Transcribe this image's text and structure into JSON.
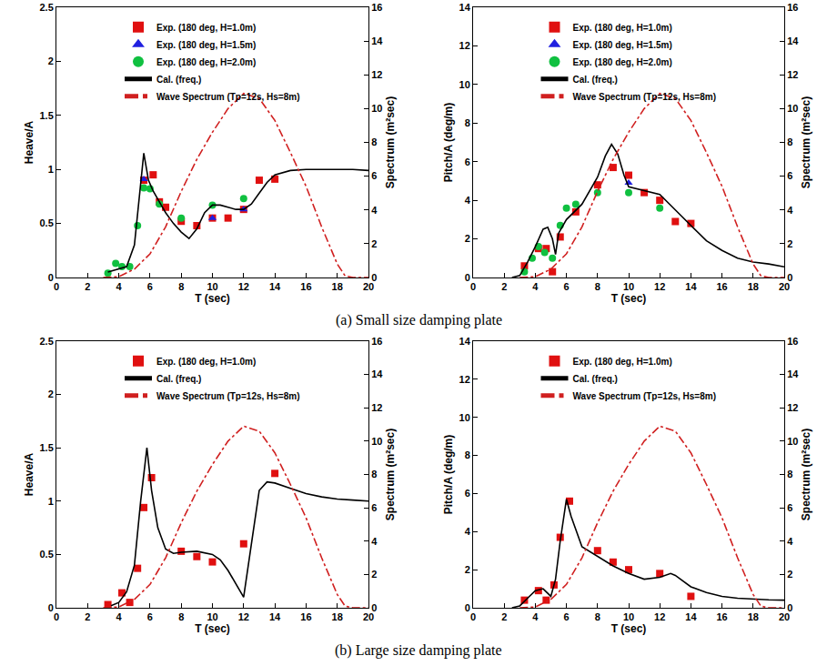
{
  "captions": [
    "(a) Small size damping plate",
    "(b) Large size damping plate"
  ],
  "chart_data": [
    {
      "type": "line",
      "x_label": "T (sec)",
      "y_label": "Heave/A",
      "y2_label": "Spectrum (m²sec)",
      "xlim": [
        0,
        20
      ],
      "xticks": [
        0,
        2,
        4,
        6,
        8,
        10,
        12,
        14,
        16,
        18,
        20
      ],
      "ylim": [
        0,
        2.5
      ],
      "yticks": [
        0,
        0.5,
        1,
        1.5,
        2,
        2.5
      ],
      "y2lim": [
        0,
        16
      ],
      "y2ticks": [
        0,
        2,
        4,
        6,
        8,
        10,
        12,
        14,
        16
      ],
      "legend": "upper center",
      "series": [
        {
          "name": "Exp. (180 deg, H=1.0m)",
          "type": "scatter",
          "marker": "square",
          "color": "#e01010",
          "x": [
            5.6,
            6.2,
            6.6,
            7,
            8,
            9,
            10,
            11,
            12,
            13,
            14
          ],
          "values": [
            0.9,
            0.95,
            0.7,
            0.65,
            0.52,
            0.48,
            0.55,
            0.55,
            0.63,
            0.9,
            0.91
          ]
        },
        {
          "name": "Exp. (180 deg, H=1.5m)",
          "type": "scatter",
          "marker": "triangle",
          "color": "#2020e0",
          "x": [
            5.6,
            10,
            12
          ],
          "values": [
            0.91,
            0.55,
            0.63
          ]
        },
        {
          "name": "Exp. (180 deg, H=2.0m)",
          "type": "scatter",
          "marker": "circle",
          "color": "#10c040",
          "x": [
            3.3,
            3.8,
            4.2,
            4.7,
            5.2,
            5.6,
            6,
            6.6,
            8,
            10,
            12
          ],
          "values": [
            0.04,
            0.13,
            0.1,
            0.1,
            0.48,
            0.83,
            0.82,
            0.68,
            0.55,
            0.67,
            0.73
          ]
        },
        {
          "name": "Cal. (freq.)",
          "type": "line",
          "line_style": "solid",
          "color": "#000000",
          "x": [
            3.3,
            4,
            4.5,
            5,
            5.3,
            5.6,
            5.9,
            6.2,
            6.6,
            7,
            7.5,
            8,
            8.5,
            9,
            9.5,
            10,
            10.5,
            11,
            11.5,
            12,
            12.5,
            13,
            13.5,
            14,
            15,
            16,
            17,
            18,
            19,
            20
          ],
          "values": [
            0.05,
            0.08,
            0.1,
            0.3,
            0.7,
            1.15,
            0.9,
            0.8,
            0.7,
            0.6,
            0.5,
            0.42,
            0.36,
            0.45,
            0.6,
            0.67,
            0.67,
            0.65,
            0.63,
            0.63,
            0.68,
            0.78,
            0.88,
            0.95,
            0.99,
            1.0,
            1.0,
            1.0,
            1.0,
            0.99
          ]
        },
        {
          "name": "Wave Spectrum (Tp=12s, Hs=8m)",
          "type": "line",
          "line_style": "dashdot",
          "color": "#d02020",
          "axis": "y2",
          "x": [
            3,
            4,
            5,
            6,
            7,
            8,
            9,
            10,
            11,
            12,
            13,
            14,
            15,
            16,
            17,
            18,
            18.5,
            19,
            20
          ],
          "values": [
            0,
            0.05,
            0.5,
            1.4,
            3.0,
            5.1,
            7.0,
            8.6,
            10.0,
            10.9,
            10.6,
            9.3,
            7.4,
            5.4,
            3.0,
            0.8,
            0.1,
            0,
            0
          ]
        }
      ]
    },
    {
      "type": "line",
      "x_label": "T (sec)",
      "y_label": "Pitch/A (deg/m)",
      "y2_label": "Spectrum (m²sec)",
      "xlim": [
        0,
        20
      ],
      "xticks": [
        0,
        2,
        4,
        6,
        8,
        10,
        12,
        14,
        16,
        18,
        20
      ],
      "ylim": [
        0,
        14
      ],
      "yticks": [
        0,
        2,
        4,
        6,
        8,
        10,
        12,
        14
      ],
      "y2lim": [
        0,
        16
      ],
      "y2ticks": [
        0,
        2,
        4,
        6,
        8,
        10,
        12,
        14,
        16
      ],
      "legend": "upper center",
      "series": [
        {
          "name": "Exp. (180 deg, H=1.0m)",
          "type": "scatter",
          "marker": "square",
          "color": "#e01010",
          "x": [
            3.3,
            4.2,
            4.7,
            5.1,
            5.6,
            6.6,
            8,
            9,
            10,
            11,
            12,
            13,
            14
          ],
          "values": [
            0.6,
            1.5,
            1.5,
            0.3,
            2.1,
            3.4,
            4.8,
            5.7,
            5.3,
            4.4,
            4.0,
            2.9,
            2.8
          ]
        },
        {
          "name": "Exp. (180 deg, H=1.5m)",
          "type": "scatter",
          "marker": "triangle",
          "color": "#2020e0",
          "x": [
            10
          ],
          "values": [
            4.9
          ]
        },
        {
          "name": "Exp. (180 deg, H=2.0m)",
          "type": "scatter",
          "marker": "circle",
          "color": "#10c040",
          "x": [
            3.3,
            3.8,
            4.2,
            4.6,
            5.1,
            5.6,
            6,
            6.6,
            8,
            10,
            12
          ],
          "values": [
            0.3,
            1.0,
            1.6,
            1.3,
            1.0,
            2.7,
            3.6,
            3.8,
            4.4,
            4.4,
            3.6
          ]
        },
        {
          "name": "Cal. (freq.)",
          "type": "line",
          "line_style": "solid",
          "color": "#000000",
          "x": [
            2.5,
            3,
            3.5,
            4,
            4.5,
            4.8,
            5.1,
            5.3,
            5.5,
            6,
            7,
            8,
            8.5,
            8.9,
            9.3,
            9.7,
            10,
            11,
            12,
            13,
            14,
            15,
            16,
            17,
            18,
            19,
            20
          ],
          "values": [
            0,
            0.1,
            0.8,
            1.6,
            2.5,
            2.6,
            2.0,
            1.2,
            2.3,
            3.0,
            3.8,
            5.2,
            6.3,
            6.9,
            6.4,
            5.3,
            4.7,
            4.5,
            4.3,
            3.5,
            2.7,
            1.9,
            1.4,
            1.0,
            0.8,
            0.7,
            0.55
          ]
        },
        {
          "name": "Wave Spectrum (Tp=12s, Hs=8m)",
          "type": "line",
          "line_style": "dashdot",
          "color": "#d02020",
          "axis": "y2",
          "x": [
            3,
            4,
            5,
            6,
            7,
            8,
            9,
            10,
            11,
            12,
            13,
            14,
            15,
            16,
            17,
            18,
            18.5,
            19,
            20
          ],
          "values": [
            0,
            0.05,
            0.5,
            1.4,
            3.0,
            5.1,
            7.0,
            8.6,
            10.0,
            10.9,
            10.6,
            9.3,
            7.4,
            5.4,
            3.0,
            0.8,
            0.1,
            0,
            0
          ]
        }
      ]
    },
    {
      "type": "line",
      "x_label": "T (sec)",
      "y_label": "Heave/A",
      "y2_label": "Spectrum (m²sec)",
      "xlim": [
        0,
        20
      ],
      "xticks": [
        0,
        2,
        4,
        6,
        8,
        10,
        12,
        14,
        16,
        18,
        20
      ],
      "ylim": [
        0,
        2.5
      ],
      "yticks": [
        0,
        0.5,
        1,
        1.5,
        2,
        2.5
      ],
      "y2lim": [
        0,
        16
      ],
      "y2ticks": [
        0,
        2,
        4,
        6,
        8,
        10,
        12,
        14,
        16
      ],
      "legend": "upper center",
      "series": [
        {
          "name": "Exp. (180 deg, H=1.0m)",
          "type": "scatter",
          "marker": "square",
          "color": "#e01010",
          "x": [
            3.3,
            4.2,
            4.7,
            5.2,
            5.6,
            6.1,
            8,
            9,
            10,
            12,
            14
          ],
          "values": [
            0.03,
            0.14,
            0.05,
            0.37,
            0.94,
            1.22,
            0.53,
            0.48,
            0.43,
            0.6,
            1.26
          ]
        },
        {
          "name": "Cal. (freq.)",
          "type": "line",
          "line_style": "solid",
          "color": "#000000",
          "x": [
            3.5,
            4,
            4.5,
            5,
            5.4,
            5.8,
            6.1,
            6.5,
            7,
            7.5,
            8,
            9,
            10,
            10.5,
            11,
            11.5,
            12,
            12.5,
            13,
            13.5,
            14,
            15,
            16,
            17,
            18,
            19,
            20
          ],
          "values": [
            0.02,
            0.05,
            0.15,
            0.4,
            1.0,
            1.5,
            1.1,
            0.75,
            0.55,
            0.51,
            0.52,
            0.53,
            0.5,
            0.45,
            0.35,
            0.22,
            0.1,
            0.6,
            1.1,
            1.18,
            1.17,
            1.12,
            1.07,
            1.04,
            1.02,
            1.01,
            1.0
          ]
        },
        {
          "name": "Wave Spectrum (Tp=12s, Hs=8m)",
          "type": "line",
          "line_style": "dashdot",
          "color": "#d02020",
          "axis": "y2",
          "x": [
            3,
            4,
            5,
            6,
            7,
            8,
            9,
            10,
            11,
            12,
            13,
            14,
            15,
            16,
            17,
            18,
            18.5,
            19,
            20
          ],
          "values": [
            0,
            0.05,
            0.5,
            1.4,
            3.0,
            5.1,
            7.0,
            8.6,
            10.0,
            10.9,
            10.6,
            9.3,
            7.4,
            5.4,
            3.0,
            0.8,
            0.1,
            0,
            0
          ]
        }
      ]
    },
    {
      "type": "line",
      "x_label": "T (sec)",
      "y_label": "Pitch/A (deg/m)",
      "y2_label": "Spectrum (m²sec)",
      "xlim": [
        0,
        20
      ],
      "xticks": [
        0,
        2,
        4,
        6,
        8,
        10,
        12,
        14,
        16,
        18,
        20
      ],
      "ylim": [
        0,
        14
      ],
      "yticks": [
        0,
        2,
        4,
        6,
        8,
        10,
        12,
        14
      ],
      "y2lim": [
        0,
        16
      ],
      "y2ticks": [
        0,
        2,
        4,
        6,
        8,
        10,
        12,
        14,
        16
      ],
      "legend": "upper center",
      "series": [
        {
          "name": "Exp. (180 deg, H=1.0m)",
          "type": "scatter",
          "marker": "square",
          "color": "#e01010",
          "x": [
            3.3,
            4.2,
            4.7,
            5.2,
            5.6,
            6.2,
            8,
            9,
            10,
            12,
            14
          ],
          "values": [
            0.4,
            0.9,
            0.4,
            1.2,
            3.7,
            5.6,
            3.0,
            2.4,
            2.0,
            1.8,
            0.6
          ]
        },
        {
          "name": "Cal. (freq.)",
          "type": "line",
          "line_style": "solid",
          "color": "#000000",
          "x": [
            2.5,
            3,
            3.5,
            4,
            4.5,
            5,
            5.3,
            5.6,
            6,
            6.3,
            7,
            8,
            9,
            10,
            11,
            12,
            12.7,
            13,
            14,
            15,
            16,
            17,
            18,
            19,
            20
          ],
          "values": [
            0,
            0.1,
            0.5,
            0.9,
            1.0,
            0.6,
            1.5,
            3.5,
            5.7,
            4.8,
            3.2,
            2.7,
            2.2,
            1.8,
            1.5,
            1.6,
            1.8,
            1.7,
            1.1,
            0.8,
            0.6,
            0.5,
            0.45,
            0.42,
            0.4
          ]
        },
        {
          "name": "Wave Spectrum (Tp=12s, Hs=8m)",
          "type": "line",
          "line_style": "dashdot",
          "color": "#d02020",
          "axis": "y2",
          "x": [
            3,
            4,
            5,
            6,
            7,
            8,
            9,
            10,
            11,
            12,
            13,
            14,
            15,
            16,
            17,
            18,
            18.5,
            19,
            20
          ],
          "values": [
            0,
            0.05,
            0.5,
            1.4,
            3.0,
            5.1,
            7.0,
            8.6,
            10.0,
            10.9,
            10.6,
            9.3,
            7.4,
            5.4,
            3.0,
            0.8,
            0.1,
            0,
            0
          ]
        }
      ]
    }
  ]
}
